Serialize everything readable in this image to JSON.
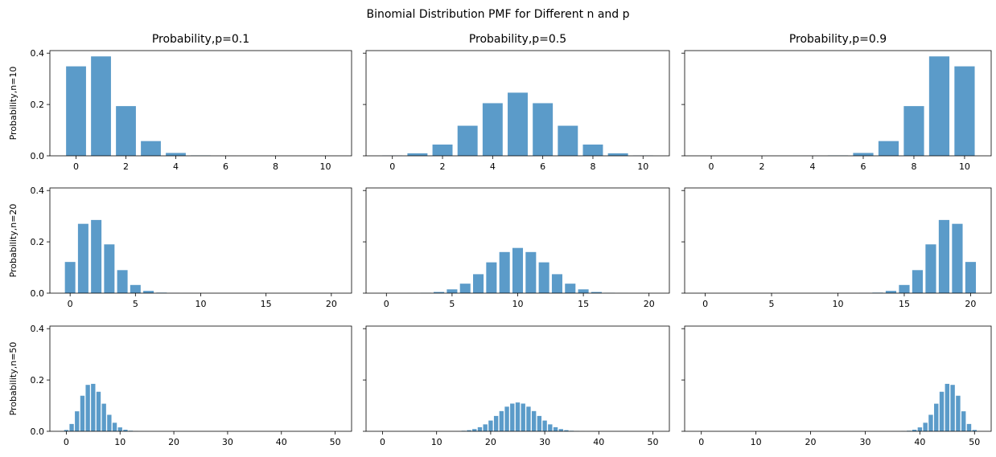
{
  "figure": {
    "suptitle": "Binomial Distribution PMF for Different n and p"
  },
  "chart_data": {
    "type": "bar",
    "bar_color": "#5b9bc9",
    "grid": false,
    "sharey": true,
    "ylim": [
      0,
      0.41
    ],
    "yticks": [
      0.0,
      0.2,
      0.4
    ],
    "col_titles": [
      "Probability,p=0.1",
      "Probability,p=0.5",
      "Probability,p=0.9"
    ],
    "row_ylabels": [
      "Probability,n=10",
      "Probability,n=20",
      "Probability,n=50"
    ],
    "ns": [
      10,
      20,
      50
    ],
    "ps": [
      0.1,
      0.5,
      0.9
    ],
    "xticks": {
      "10": [
        0,
        2,
        4,
        6,
        8,
        10
      ],
      "20": [
        0,
        5,
        10,
        15,
        20
      ],
      "50": [
        0,
        10,
        20,
        30,
        40,
        50
      ]
    },
    "panels": [
      {
        "n": 10,
        "p": 0.1,
        "x": [
          0,
          1,
          2,
          3,
          4,
          5,
          6,
          7,
          8,
          9,
          10
        ],
        "values": [
          0.3487,
          0.3874,
          0.1937,
          0.0574,
          0.0112,
          0.0015,
          0.0001,
          0,
          0,
          0,
          0
        ]
      },
      {
        "n": 10,
        "p": 0.5,
        "x": [
          0,
          1,
          2,
          3,
          4,
          5,
          6,
          7,
          8,
          9,
          10
        ],
        "values": [
          0.001,
          0.0098,
          0.0439,
          0.1172,
          0.2051,
          0.2461,
          0.2051,
          0.1172,
          0.0439,
          0.0098,
          0.001
        ]
      },
      {
        "n": 10,
        "p": 0.9,
        "x": [
          0,
          1,
          2,
          3,
          4,
          5,
          6,
          7,
          8,
          9,
          10
        ],
        "values": [
          0,
          0,
          0,
          0,
          0.0001,
          0.0015,
          0.0112,
          0.0574,
          0.1937,
          0.3874,
          0.3487
        ]
      },
      {
        "n": 20,
        "p": 0.1,
        "x": [
          0,
          1,
          2,
          3,
          4,
          5,
          6,
          7,
          8,
          9,
          10,
          11,
          12,
          13,
          14,
          15,
          16,
          17,
          18,
          19,
          20
        ],
        "values": [
          0.1216,
          0.2702,
          0.2852,
          0.1901,
          0.0898,
          0.0319,
          0.0089,
          0.002,
          0.0004,
          0.0001,
          0,
          0,
          0,
          0,
          0,
          0,
          0,
          0,
          0,
          0,
          0
        ]
      },
      {
        "n": 20,
        "p": 0.5,
        "x": [
          0,
          1,
          2,
          3,
          4,
          5,
          6,
          7,
          8,
          9,
          10,
          11,
          12,
          13,
          14,
          15,
          16,
          17,
          18,
          19,
          20
        ],
        "values": [
          0,
          0,
          0.0002,
          0.0011,
          0.0046,
          0.0148,
          0.037,
          0.0739,
          0.1201,
          0.1602,
          0.1762,
          0.1602,
          0.1201,
          0.0739,
          0.037,
          0.0148,
          0.0046,
          0.0011,
          0.0002,
          0,
          0
        ]
      },
      {
        "n": 20,
        "p": 0.9,
        "x": [
          0,
          1,
          2,
          3,
          4,
          5,
          6,
          7,
          8,
          9,
          10,
          11,
          12,
          13,
          14,
          15,
          16,
          17,
          18,
          19,
          20
        ],
        "values": [
          0,
          0,
          0,
          0,
          0,
          0,
          0,
          0,
          0,
          0,
          0,
          0.0001,
          0.0004,
          0.002,
          0.0089,
          0.0319,
          0.0898,
          0.1901,
          0.2852,
          0.2702,
          0.1216
        ]
      },
      {
        "n": 50,
        "p": 0.1,
        "x": [
          0,
          1,
          2,
          3,
          4,
          5,
          6,
          7,
          8,
          9,
          10,
          11,
          12,
          13,
          14,
          15,
          16,
          17,
          18,
          19,
          20,
          21,
          22,
          23,
          24,
          25,
          26,
          27,
          28,
          29,
          30,
          31,
          32,
          33,
          34,
          35,
          36,
          37,
          38,
          39,
          40,
          41,
          42,
          43,
          44,
          45,
          46,
          47,
          48,
          49,
          50
        ],
        "values": [
          0.0052,
          0.0286,
          0.0779,
          0.1386,
          0.1809,
          0.1849,
          0.1541,
          0.1076,
          0.0643,
          0.0333,
          0.0152,
          0.0061,
          0.0022,
          0.0007,
          0.0002,
          0.0001,
          0,
          0,
          0,
          0,
          0,
          0,
          0,
          0,
          0,
          0,
          0,
          0,
          0,
          0,
          0,
          0,
          0,
          0,
          0,
          0,
          0,
          0,
          0,
          0,
          0,
          0,
          0,
          0,
          0,
          0,
          0,
          0,
          0,
          0,
          0
        ]
      },
      {
        "n": 50,
        "p": 0.5,
        "x": [
          0,
          1,
          2,
          3,
          4,
          5,
          6,
          7,
          8,
          9,
          10,
          11,
          12,
          13,
          14,
          15,
          16,
          17,
          18,
          19,
          20,
          21,
          22,
          23,
          24,
          25,
          26,
          27,
          28,
          29,
          30,
          31,
          32,
          33,
          34,
          35,
          36,
          37,
          38,
          39,
          40,
          41,
          42,
          43,
          44,
          45,
          46,
          47,
          48,
          49,
          50
        ],
        "values": [
          0,
          0,
          0,
          0,
          0,
          0,
          0,
          0,
          0,
          0,
          0,
          0,
          0,
          0,
          0.0001,
          0.002,
          0.0044,
          0.0087,
          0.016,
          0.027,
          0.0419,
          0.0598,
          0.0788,
          0.096,
          0.108,
          0.1123,
          0.108,
          0.096,
          0.0788,
          0.0598,
          0.0419,
          0.027,
          0.016,
          0.0087,
          0.0044,
          0.002,
          0.0008,
          0.0003,
          0.0001,
          0,
          0,
          0,
          0,
          0,
          0,
          0,
          0,
          0,
          0,
          0,
          0
        ]
      },
      {
        "n": 50,
        "p": 0.9,
        "x": [
          0,
          1,
          2,
          3,
          4,
          5,
          6,
          7,
          8,
          9,
          10,
          11,
          12,
          13,
          14,
          15,
          16,
          17,
          18,
          19,
          20,
          21,
          22,
          23,
          24,
          25,
          26,
          27,
          28,
          29,
          30,
          31,
          32,
          33,
          34,
          35,
          36,
          37,
          38,
          39,
          40,
          41,
          42,
          43,
          44,
          45,
          46,
          47,
          48,
          49,
          50
        ],
        "values": [
          0,
          0,
          0,
          0,
          0,
          0,
          0,
          0,
          0,
          0,
          0,
          0,
          0,
          0,
          0,
          0,
          0,
          0,
          0,
          0,
          0,
          0,
          0,
          0,
          0,
          0,
          0,
          0,
          0,
          0,
          0,
          0,
          0,
          0,
          0,
          0.0001,
          0.0002,
          0.0007,
          0.0022,
          0.0061,
          0.0152,
          0.0333,
          0.0643,
          0.1076,
          0.1541,
          0.1849,
          0.1809,
          0.1386,
          0.0779,
          0.0286,
          0.0052
        ]
      }
    ]
  }
}
